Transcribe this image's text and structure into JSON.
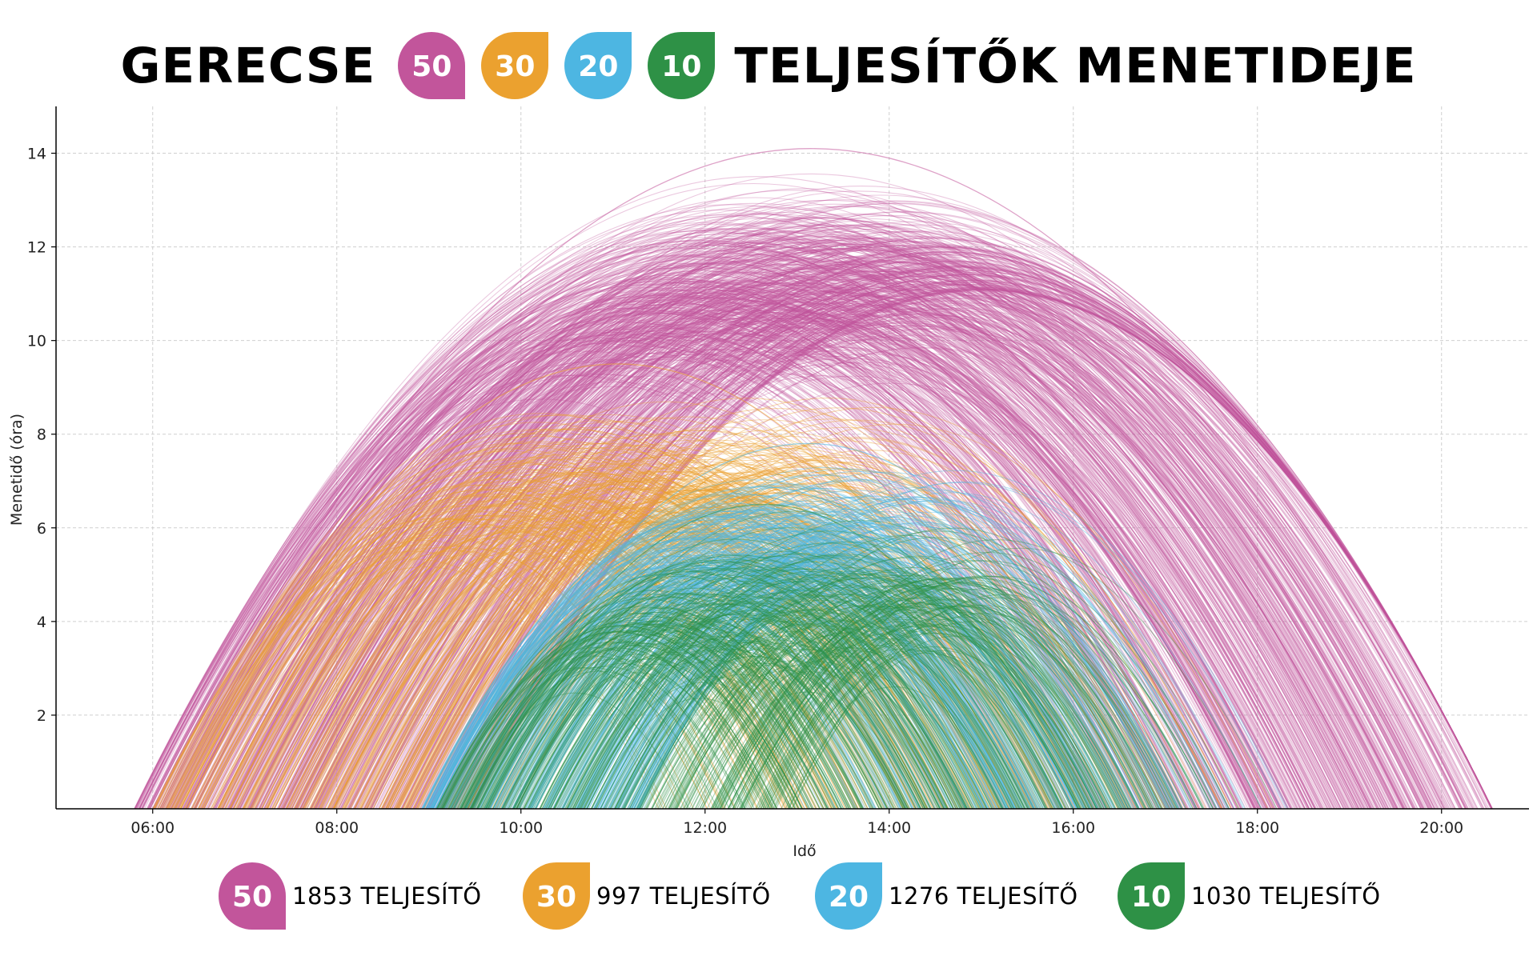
{
  "header": {
    "title_start": "GERECSE",
    "title_end": "TELJESÍTŐK MENETIDEJE"
  },
  "chart_data": {
    "type": "line",
    "title": "GERECSE 50 30 20 10 TELJESÍTŐK MENETIDEJE",
    "xlabel": "Idő",
    "ylabel": "Menetidő (óra)",
    "x_range_hours": [
      4.95,
      20.95
    ],
    "xlim": [
      "04:57",
      "20:57"
    ],
    "ylim": [
      0,
      15
    ],
    "x_ticks": [
      "06:00",
      "08:00",
      "10:00",
      "12:00",
      "14:00",
      "16:00",
      "18:00",
      "20:00"
    ],
    "y_ticks": [
      2,
      4,
      6,
      8,
      10,
      12,
      14
    ],
    "grid": true,
    "legend_position": "bottom",
    "series": [
      {
        "name": "50",
        "legend_label": "1853 TELJESÍTŐ",
        "count": 1853,
        "color": "#C2559B",
        "start_time_range": [
          "05:48",
          "09:30"
        ],
        "duration_range_hours": [
          8.5,
          14.1
        ],
        "max_duration_hours": 14.1
      },
      {
        "name": "30",
        "legend_label": "997 TELJESÍTŐ",
        "count": 997,
        "color": "#EBA12F",
        "start_time_range": [
          "06:00",
          "10:00"
        ],
        "duration_range_hours": [
          4.2,
          9.5
        ],
        "max_duration_hours": 9.5
      },
      {
        "name": "20",
        "legend_label": "1276 TELJESÍTŐ",
        "count": 1276,
        "color": "#4DB6E2",
        "start_time_range": [
          "08:55",
          "11:20"
        ],
        "duration_range_hours": [
          3.2,
          7.8
        ],
        "max_duration_hours": 7.8
      },
      {
        "name": "10",
        "legend_label": "1030 TELJESÍTŐ",
        "count": 1030,
        "color": "#2E9146",
        "start_time_range": [
          "09:05",
          "13:00"
        ],
        "duration_range_hours": [
          2.0,
          6.5
        ],
        "max_duration_hours": 6.5
      }
    ]
  }
}
